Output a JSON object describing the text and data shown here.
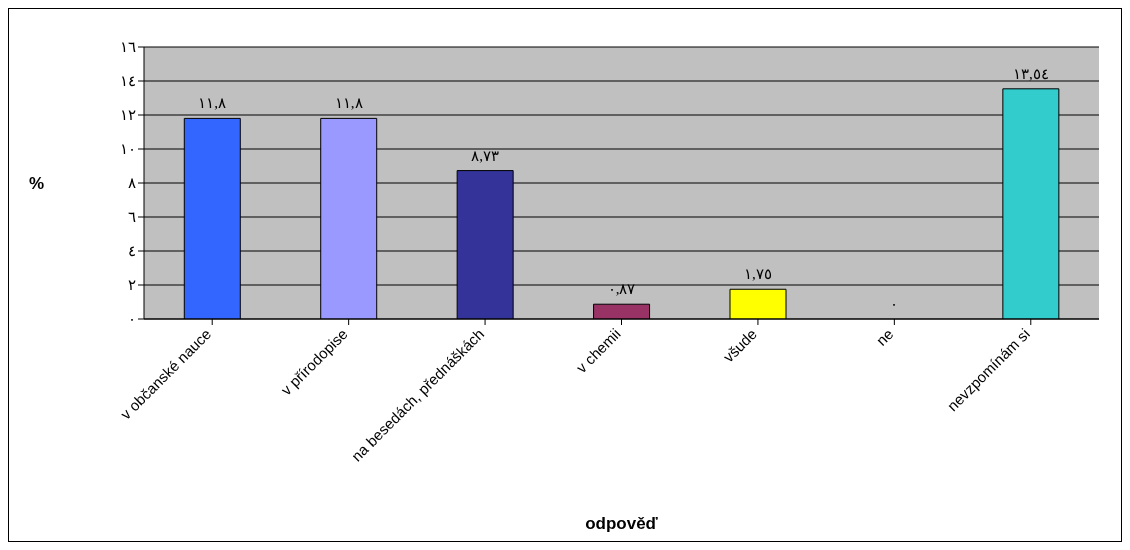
{
  "chart_data": {
    "type": "bar",
    "xlabel": "odpověď",
    "ylabel": "%",
    "categories": [
      "v občanské nauce",
      "v přírodopise",
      "na besedách, přednáškách",
      "v chemii",
      "všude",
      "ne",
      "nevzpomínám si"
    ],
    "values": [
      11.8,
      11.8,
      8.73,
      0.87,
      1.75,
      0,
      13.54
    ],
    "colors": [
      "#3366ff",
      "#9999ff",
      "#333399",
      "#993366",
      "#ffff00",
      null,
      "#33cccc"
    ],
    "value_labels": [
      "١١,٨",
      "١١,٨",
      "٨,٧٣",
      "٠,٨٧",
      "١,٧٥",
      "٠",
      "١٣,٥٤"
    ],
    "ylim": [
      0,
      16
    ],
    "yticks": [
      {
        "value": 0,
        "label": "٠"
      },
      {
        "value": 2,
        "label": "٢"
      },
      {
        "value": 4,
        "label": "٤"
      },
      {
        "value": 6,
        "label": "٦"
      },
      {
        "value": 8,
        "label": "٨"
      },
      {
        "value": 10,
        "label": "١٠"
      },
      {
        "value": 12,
        "label": "١٢"
      },
      {
        "value": 14,
        "label": "١٤"
      },
      {
        "value": 16,
        "label": "١٦"
      }
    ],
    "grid": "y",
    "legend": false
  }
}
